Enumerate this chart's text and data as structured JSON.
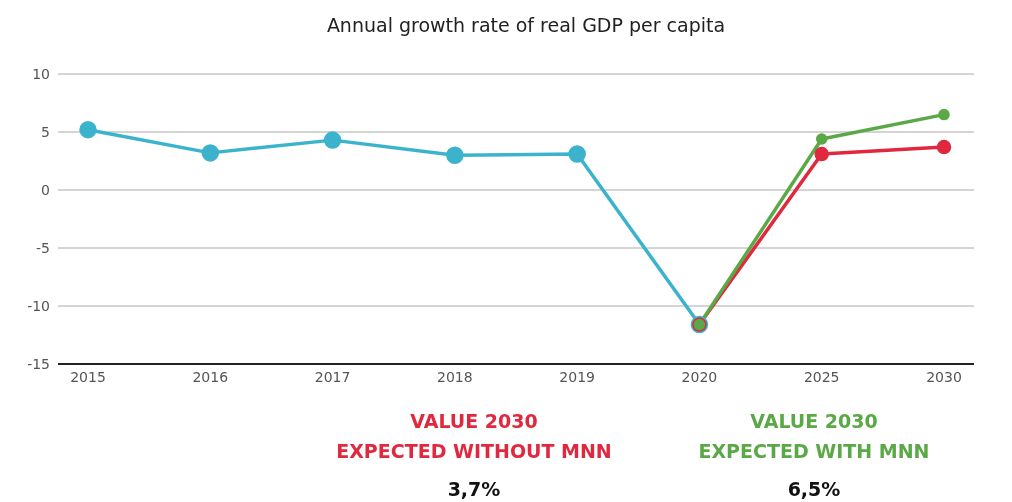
{
  "chart_data": {
    "type": "line",
    "title": "Annual growth rate of real GDP per capita",
    "categories": [
      "2015",
      "2016",
      "2017",
      "2018",
      "2019",
      "2020",
      "2025",
      "2030"
    ],
    "series": [
      {
        "color": "#3bb3cc",
        "values": [
          5.2,
          3.2,
          4.3,
          3.0,
          3.1,
          -11.6,
          null,
          null
        ]
      },
      {
        "color": "#e0283f",
        "values": [
          null,
          null,
          null,
          null,
          null,
          -11.6,
          3.1,
          3.7
        ]
      },
      {
        "color": "#5aa846",
        "values": [
          null,
          null,
          null,
          null,
          null,
          -11.6,
          4.4,
          6.5
        ]
      }
    ],
    "ylim": [
      -15,
      10
    ],
    "yticks": [
      -15,
      -10,
      -5,
      0,
      5,
      10
    ],
    "grid": "y",
    "marker": "circle",
    "line_style": "solid",
    "annotations": [
      "VALUE 2030\nEXPECTED WITHOUT MNN",
      "3,7%",
      "VALUE 2030\nEXPECTED WITH MNN",
      "6,5%"
    ]
  }
}
